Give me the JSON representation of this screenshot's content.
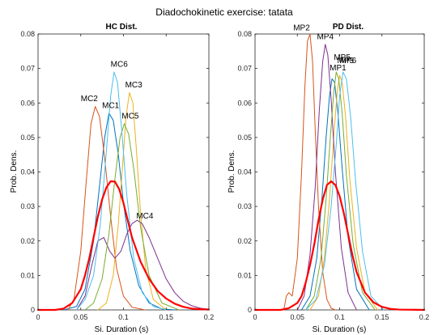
{
  "figure": {
    "title": "Diadochokinetic exercise: tatata"
  },
  "chart_data": [
    {
      "type": "line",
      "title": "HC Dist.",
      "xlabel": "Si. Duration (s)",
      "ylabel": "Prob. Dens.",
      "xlim": [
        0,
        0.2
      ],
      "ylim": [
        0,
        0.08
      ],
      "xticks": [
        0,
        0.05,
        0.1,
        0.15,
        0.2
      ],
      "yticks": [
        0,
        0.01,
        0.02,
        0.03,
        0.04,
        0.05,
        0.06,
        0.07,
        0.08
      ],
      "xtick_labels": [
        "0",
        "0.05",
        "0.1",
        "0.15",
        "0.2"
      ],
      "ytick_labels": [
        "0",
        "0.01",
        "0.02",
        "0.03",
        "0.04",
        "0.05",
        "0.06",
        "0.07",
        "0.08"
      ],
      "grid": false,
      "series": [
        {
          "name": "MC1",
          "label": "MC1",
          "label_at": [
            0.085,
            0.0585
          ],
          "color": "#0072BD",
          "x": [
            0.03,
            0.045,
            0.055,
            0.065,
            0.072,
            0.078,
            0.083,
            0.088,
            0.094,
            0.1,
            0.108,
            0.118,
            0.13,
            0.145,
            0.16
          ],
          "y": [
            0,
            0.001,
            0.006,
            0.02,
            0.036,
            0.05,
            0.057,
            0.055,
            0.045,
            0.031,
            0.017,
            0.007,
            0.002,
            0.0003,
            0
          ]
        },
        {
          "name": "MC2",
          "label": "MC2",
          "label_at": [
            0.06,
            0.0605
          ],
          "color": "#D95319",
          "x": [
            0.035,
            0.042,
            0.05,
            0.056,
            0.062,
            0.067,
            0.072,
            0.078,
            0.085,
            0.092,
            0.1,
            0.11,
            0.125
          ],
          "y": [
            0,
            0.003,
            0.017,
            0.036,
            0.054,
            0.059,
            0.056,
            0.044,
            0.027,
            0.012,
            0.004,
            0.0008,
            0
          ]
        },
        {
          "name": "MC3",
          "label": "MC3",
          "label_at": [
            0.112,
            0.0645
          ],
          "color": "#EDB120",
          "x": [
            0.07,
            0.08,
            0.088,
            0.094,
            0.099,
            0.103,
            0.107,
            0.111,
            0.115,
            0.12,
            0.126,
            0.135,
            0.15
          ],
          "y": [
            0,
            0.002,
            0.01,
            0.025,
            0.042,
            0.056,
            0.063,
            0.06,
            0.047,
            0.028,
            0.012,
            0.003,
            0
          ]
        },
        {
          "name": "MC4",
          "label": "MC4",
          "label_at": [
            0.125,
            0.0265
          ],
          "color": "#7E2F8E",
          "x": [
            0.045,
            0.055,
            0.063,
            0.07,
            0.077,
            0.084,
            0.09,
            0.097,
            0.104,
            0.11,
            0.116,
            0.122,
            0.13,
            0.14,
            0.15,
            0.16,
            0.17,
            0.18,
            0.19,
            0.2
          ],
          "y": [
            0,
            0.004,
            0.013,
            0.02,
            0.021,
            0.017,
            0.015,
            0.017,
            0.022,
            0.025,
            0.026,
            0.025,
            0.021,
            0.015,
            0.009,
            0.005,
            0.0025,
            0.0012,
            0.0005,
            0.0002
          ]
        },
        {
          "name": "MC5",
          "label": "MC5",
          "label_at": [
            0.108,
            0.0555
          ],
          "color": "#77AC30",
          "x": [
            0.055,
            0.065,
            0.075,
            0.083,
            0.09,
            0.096,
            0.101,
            0.106,
            0.112,
            0.12,
            0.13,
            0.145,
            0.165
          ],
          "y": [
            0,
            0.002,
            0.009,
            0.022,
            0.038,
            0.05,
            0.054,
            0.051,
            0.041,
            0.024,
            0.01,
            0.002,
            0
          ]
        },
        {
          "name": "MC6",
          "label": "MC6",
          "label_at": [
            0.095,
            0.0705
          ],
          "color": "#4DBEEE",
          "x": [
            0.045,
            0.055,
            0.065,
            0.073,
            0.08,
            0.085,
            0.089,
            0.093,
            0.098,
            0.104,
            0.112,
            0.122,
            0.135,
            0.15
          ],
          "y": [
            0,
            0.003,
            0.01,
            0.025,
            0.046,
            0.062,
            0.069,
            0.066,
            0.052,
            0.033,
            0.015,
            0.005,
            0.001,
            0
          ]
        },
        {
          "name": "HC",
          "label": "",
          "color": "#FF0000",
          "bold": true,
          "x": [
            0,
            0.02,
            0.03,
            0.04,
            0.05,
            0.055,
            0.06,
            0.065,
            0.07,
            0.075,
            0.08,
            0.085,
            0.09,
            0.095,
            0.1,
            0.105,
            0.11,
            0.12,
            0.13,
            0.14,
            0.15,
            0.16,
            0.17,
            0.18,
            0.19,
            0.2
          ],
          "y": [
            0,
            0,
            0.0004,
            0.002,
            0.006,
            0.01,
            0.015,
            0.021,
            0.027,
            0.032,
            0.0355,
            0.0373,
            0.0372,
            0.035,
            0.031,
            0.026,
            0.021,
            0.014,
            0.009,
            0.0055,
            0.0033,
            0.0018,
            0.0009,
            0.0004,
            0.0002,
            0.0001
          ]
        }
      ]
    },
    {
      "type": "line",
      "title": "PD Dist.",
      "xlabel": "Si. Duration (s)",
      "ylabel": "Prob. Dens.",
      "xlim": [
        0,
        0.2
      ],
      "ylim": [
        0,
        0.08
      ],
      "xticks": [
        0,
        0.05,
        0.1,
        0.15,
        0.2
      ],
      "yticks": [
        0,
        0.01,
        0.02,
        0.03,
        0.04,
        0.05,
        0.06,
        0.07,
        0.08
      ],
      "xtick_labels": [
        "0",
        "0.05",
        "0.1",
        "0.15",
        "0.2"
      ],
      "ytick_labels": [
        "0",
        "0.01",
        "0.02",
        "0.03",
        "0.04",
        "0.05",
        "0.06",
        "0.07",
        "0.08"
      ],
      "grid": false,
      "series": [
        {
          "name": "MP1",
          "label": "MP1",
          "label_at": [
            0.098,
            0.0695
          ],
          "color": "#0072BD",
          "x": [
            0.055,
            0.065,
            0.073,
            0.079,
            0.084,
            0.088,
            0.091,
            0.094,
            0.098,
            0.103,
            0.11,
            0.12,
            0.135
          ],
          "y": [
            0,
            0.004,
            0.015,
            0.032,
            0.05,
            0.062,
            0.067,
            0.066,
            0.057,
            0.041,
            0.021,
            0.006,
            0
          ]
        },
        {
          "name": "MP2",
          "label": "MP2",
          "label_at": [
            0.055,
            0.081
          ],
          "color": "#D95319",
          "x": [
            0.034,
            0.037,
            0.04,
            0.044,
            0.05,
            0.055,
            0.059,
            0.062,
            0.065,
            0.068,
            0.071,
            0.075,
            0.08,
            0.085,
            0.09,
            0.095
          ],
          "y": [
            0,
            0.004,
            0.005,
            0.004,
            0.015,
            0.04,
            0.065,
            0.078,
            0.08,
            0.072,
            0.053,
            0.03,
            0.011,
            0.003,
            0.0005,
            0
          ]
        },
        {
          "name": "MP3",
          "label": "MP3",
          "label_at": [
            0.107,
            0.0715
          ],
          "color": "#EDB120",
          "x": [
            0.065,
            0.075,
            0.082,
            0.088,
            0.093,
            0.097,
            0.1,
            0.103,
            0.107,
            0.112,
            0.12,
            0.13,
            0.145
          ],
          "y": [
            0,
            0.004,
            0.015,
            0.032,
            0.05,
            0.063,
            0.068,
            0.066,
            0.056,
            0.038,
            0.018,
            0.005,
            0
          ]
        },
        {
          "name": "MP4",
          "label": "MP4",
          "label_at": [
            0.083,
            0.0785
          ],
          "color": "#7E2F8E",
          "x": [
            0.05,
            0.058,
            0.065,
            0.071,
            0.076,
            0.08,
            0.083,
            0.086,
            0.09,
            0.095,
            0.102,
            0.11,
            0.12
          ],
          "y": [
            0,
            0.004,
            0.016,
            0.035,
            0.058,
            0.072,
            0.077,
            0.074,
            0.061,
            0.04,
            0.018,
            0.005,
            0
          ]
        },
        {
          "name": "MP5",
          "label": "MP5",
          "label_at": [
            0.103,
            0.0725
          ],
          "color": "#77AC30",
          "x": [
            0.06,
            0.07,
            0.078,
            0.084,
            0.089,
            0.093,
            0.096,
            0.099,
            0.103,
            0.108,
            0.116,
            0.127,
            0.142
          ],
          "y": [
            0,
            0.004,
            0.015,
            0.032,
            0.05,
            0.063,
            0.069,
            0.067,
            0.057,
            0.039,
            0.019,
            0.005,
            0
          ]
        },
        {
          "name": "MP6",
          "label": "MP6",
          "label_at": [
            0.11,
            0.0715
          ],
          "color": "#4DBEEE",
          "x": [
            0.06,
            0.072,
            0.082,
            0.09,
            0.096,
            0.1,
            0.104,
            0.108,
            0.113,
            0.119,
            0.127,
            0.137,
            0.152
          ],
          "y": [
            0,
            0.003,
            0.013,
            0.03,
            0.048,
            0.062,
            0.069,
            0.067,
            0.056,
            0.037,
            0.017,
            0.004,
            0
          ]
        },
        {
          "name": "PD",
          "label": "",
          "color": "#FF0000",
          "bold": true,
          "x": [
            0,
            0.03,
            0.04,
            0.05,
            0.055,
            0.06,
            0.065,
            0.07,
            0.075,
            0.08,
            0.085,
            0.09,
            0.095,
            0.1,
            0.105,
            0.11,
            0.115,
            0.12,
            0.13,
            0.14,
            0.15,
            0.16,
            0.17,
            0.2
          ],
          "y": [
            0,
            0,
            0.0005,
            0.002,
            0.004,
            0.008,
            0.013,
            0.019,
            0.026,
            0.032,
            0.0362,
            0.0373,
            0.0362,
            0.033,
            0.028,
            0.022,
            0.016,
            0.011,
            0.005,
            0.0022,
            0.0009,
            0.0003,
            0.0001,
            0
          ]
        }
      ]
    }
  ]
}
